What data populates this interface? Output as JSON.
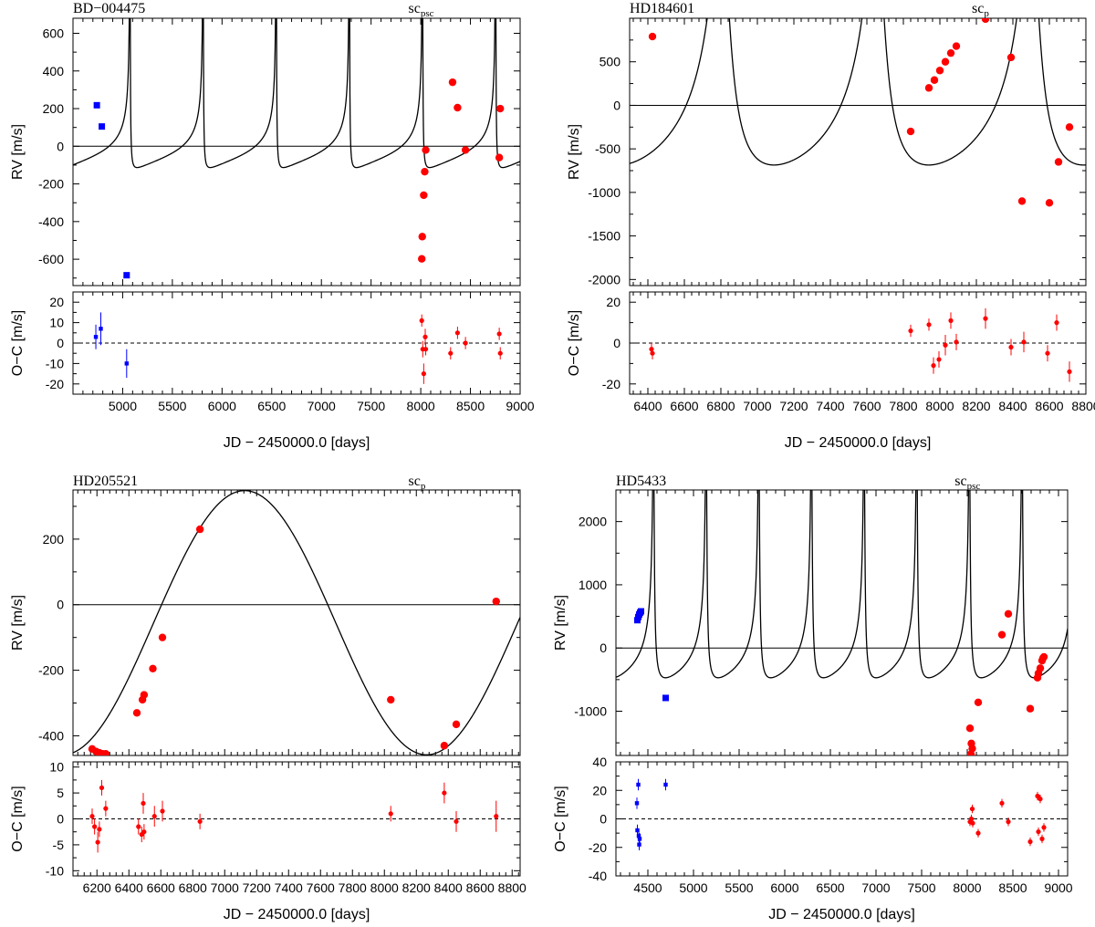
{
  "colors": {
    "set_a": "#0000ff",
    "set_b": "#ff0000",
    "curve": "#000000"
  },
  "chart_data": [
    {
      "type": "scatter",
      "title": "BD−004475",
      "model_label": {
        "base": "sc",
        "sub": "psc"
      },
      "xlabel": "JD − 2450000.0 [days]",
      "ylabel": "RV [m/s]",
      "residual_ylabel": "O−C [m/s]",
      "xlim": [
        4500,
        9000
      ],
      "ylim": [
        -740,
        680
      ],
      "residual_ylim": [
        -25,
        25
      ],
      "xticks": [
        5000,
        5500,
        6000,
        6500,
        7000,
        7500,
        8000,
        8500,
        9000
      ],
      "yticks": [
        600,
        400,
        200,
        0,
        -200,
        -400,
        -600
      ],
      "residual_yticks": [
        20,
        10,
        0,
        -10,
        -20
      ],
      "model": {
        "period": 736,
        "K": 708,
        "e": 0.92,
        "omega_deg": 24,
        "tp": 5810,
        "gamma": 0
      },
      "series": [
        {
          "set": "a",
          "marker": "square",
          "points": [
            [
              4740,
              218
            ],
            [
              4790,
              105
            ],
            [
              5040,
              -685
            ]
          ],
          "residuals": [
            [
              4730,
              3,
              6
            ],
            [
              4780,
              7,
              8
            ],
            [
              5040,
              -10,
              7
            ]
          ]
        },
        {
          "set": "b",
          "marker": "circle",
          "points": [
            [
              8010,
              -598
            ],
            [
              8015,
              -480
            ],
            [
              8030,
              -260
            ],
            [
              8040,
              -135
            ],
            [
              8050,
              -20
            ],
            [
              8320,
              340
            ],
            [
              8370,
              205
            ],
            [
              8450,
              -20
            ],
            [
              8790,
              -60
            ],
            [
              8800,
              200
            ]
          ],
          "residuals": [
            [
              8010,
              11,
              3
            ],
            [
              8020,
              -3,
              4
            ],
            [
              8030,
              -15,
              5
            ],
            [
              8045,
              3,
              4
            ],
            [
              8050,
              -3,
              3
            ],
            [
              8300,
              -5,
              3
            ],
            [
              8370,
              5,
              3
            ],
            [
              8450,
              0,
              3
            ],
            [
              8790,
              4.5,
              3
            ],
            [
              8800,
              -5,
              3
            ]
          ]
        }
      ]
    },
    {
      "type": "scatter",
      "title": "HD184601",
      "model_label": {
        "base": "sc",
        "sub": "p"
      },
      "xlabel": "JD − 2450000.0 [days]",
      "ylabel": "RV [m/s]",
      "residual_ylabel": "O−C [m/s]",
      "xlim": [
        6300,
        8800
      ],
      "ylim": [
        -2070,
        1000
      ],
      "residual_ylim": [
        -25,
        25
      ],
      "xticks": [
        6400,
        6600,
        6800,
        7000,
        7200,
        7400,
        7600,
        7800,
        8000,
        8200,
        8400,
        8600,
        8800
      ],
      "yticks": [
        500,
        0,
        -500,
        -1000,
        -1500,
        -2000
      ],
      "residual_yticks": [
        20,
        0,
        -20
      ],
      "model": {
        "period": 848,
        "K": 1495,
        "e": 0.58,
        "omega_deg": 21,
        "tp": 6810,
        "gamma": 0
      },
      "series": [
        {
          "set": "b",
          "marker": "circle",
          "points": [
            [
              6425,
              790
            ],
            [
              7840,
              -300
            ],
            [
              7940,
              200
            ],
            [
              7970,
              290
            ],
            [
              8000,
              400
            ],
            [
              8030,
              500
            ],
            [
              8060,
              600
            ],
            [
              8090,
              680
            ],
            [
              8250,
              990
            ],
            [
              8390,
              550
            ],
            [
              8450,
              -1100
            ],
            [
              8600,
              -1120
            ],
            [
              8650,
              -650
            ],
            [
              8710,
              -250
            ]
          ],
          "residuals": [
            [
              6420,
              -3,
              3
            ],
            [
              6425,
              -5,
              3
            ],
            [
              7840,
              6,
              3
            ],
            [
              7940,
              9,
              3
            ],
            [
              7965,
              -11,
              4
            ],
            [
              7995,
              -8,
              4
            ],
            [
              8030,
              -1,
              5
            ],
            [
              8060,
              11,
              4
            ],
            [
              8090,
              0.5,
              4
            ],
            [
              8250,
              12,
              5
            ],
            [
              8390,
              -2,
              4
            ],
            [
              8460,
              0.5,
              5
            ],
            [
              8590,
              -5,
              4
            ],
            [
              8640,
              10,
              4
            ],
            [
              8710,
              -14,
              5
            ]
          ]
        }
      ]
    },
    {
      "type": "scatter",
      "title": "HD205521",
      "model_label": {
        "base": "sc",
        "sub": "p"
      },
      "xlabel": "JD − 2450000.0 [days]",
      "ylabel": "RV [m/s]",
      "residual_ylabel": "O−C [m/s]",
      "xlim": [
        6050,
        8850
      ],
      "ylim": [
        -460,
        350
      ],
      "residual_ylim": [
        -11,
        11
      ],
      "xticks": [
        6200,
        6400,
        6600,
        6800,
        7000,
        7200,
        7400,
        7600,
        7800,
        8000,
        8200,
        8400,
        8600,
        8800
      ],
      "yticks": [
        200,
        0,
        -200,
        -400
      ],
      "residual_yticks": [
        10,
        5,
        0,
        -5,
        -10
      ],
      "model": {
        "period": 2280,
        "K": 403,
        "e": 0,
        "omega_deg": 0,
        "tp": 7125,
        "gamma": -55
      },
      "series": [
        {
          "set": "b",
          "marker": "circle",
          "points": [
            [
              6170,
              -440
            ],
            [
              6195,
              -448
            ],
            [
              6215,
              -452
            ],
            [
              6235,
              -455
            ],
            [
              6255,
              -455
            ],
            [
              6450,
              -330
            ],
            [
              6485,
              -290
            ],
            [
              6495,
              -275
            ],
            [
              6550,
              -195
            ],
            [
              6610,
              -100
            ],
            [
              6845,
              230
            ],
            [
              8040,
              -290
            ],
            [
              8375,
              -430
            ],
            [
              8450,
              -365
            ],
            [
              8700,
              10
            ]
          ],
          "residuals": [
            [
              6170,
              0.5,
              1.5
            ],
            [
              6185,
              -1.5,
              1.5
            ],
            [
              6205,
              -4.5,
              2
            ],
            [
              6215,
              -2,
              1.5
            ],
            [
              6230,
              6,
              1.5
            ],
            [
              6255,
              2,
              1.5
            ],
            [
              6460,
              -1.5,
              1.5
            ],
            [
              6480,
              -3,
              1.5
            ],
            [
              6490,
              3,
              2
            ],
            [
              6495,
              -2.5,
              1.5
            ],
            [
              6560,
              0.5,
              2
            ],
            [
              6610,
              1.5,
              2
            ],
            [
              6845,
              -0.5,
              1.5
            ],
            [
              8040,
              1,
              1.5
            ],
            [
              8375,
              5,
              2
            ],
            [
              8450,
              -0.5,
              2
            ],
            [
              8700,
              0.5,
              3
            ]
          ]
        }
      ]
    },
    {
      "type": "scatter",
      "title": "HD5433",
      "model_label": {
        "base": "sc",
        "sub": "psc"
      },
      "xlabel": "JD − 2450000.0 [days]",
      "ylabel": "RV [m/s]",
      "residual_ylabel": "O−C [m/s]",
      "xlim": [
        4150,
        9100
      ],
      "ylim": [
        -1700,
        2500
      ],
      "residual_ylim": [
        -40,
        40
      ],
      "xticks": [
        4500,
        5000,
        5500,
        6000,
        6500,
        7000,
        7500,
        8000,
        8500,
        9000
      ],
      "yticks": [
        2000,
        1000,
        0,
        -1000
      ],
      "residual_yticks": [
        40,
        20,
        0,
        -20,
        -40
      ],
      "model": {
        "period": 577,
        "K": 2050,
        "e": 0.82,
        "omega_deg": 20,
        "tp": 5140,
        "gamma": 0
      },
      "series": [
        {
          "set": "a",
          "marker": "square",
          "points": [
            [
              4385,
              440
            ],
            [
              4395,
              490
            ],
            [
              4405,
              530
            ],
            [
              4415,
              560
            ],
            [
              4425,
              580
            ],
            [
              4695,
              -790
            ]
          ],
          "residuals": [
            [
              4380,
              11,
              4
            ],
            [
              4385,
              -8,
              4
            ],
            [
              4395,
              24,
              4
            ],
            [
              4400,
              -12,
              4
            ],
            [
              4405,
              -18,
              4
            ],
            [
              4410,
              -14,
              4
            ],
            [
              4695,
              24,
              4
            ]
          ]
        },
        {
          "set": "b",
          "marker": "circle",
          "points": [
            [
              8030,
              -1270
            ],
            [
              8045,
              -1510
            ],
            [
              8055,
              -1590
            ],
            [
              8040,
              -1680
            ],
            [
              8120,
              -860
            ],
            [
              8380,
              210
            ],
            [
              8450,
              540
            ],
            [
              8690,
              -960
            ],
            [
              8770,
              -470
            ],
            [
              8780,
              -400
            ],
            [
              8800,
              -320
            ],
            [
              8820,
              -200
            ],
            [
              8840,
              -140
            ],
            [
              8830,
              -160
            ]
          ],
          "residuals": [
            [
              8030,
              -2,
              3
            ],
            [
              8045,
              0,
              3
            ],
            [
              8055,
              7,
              3
            ],
            [
              8060,
              -3,
              3
            ],
            [
              8120,
              -10,
              3
            ],
            [
              8380,
              11,
              3
            ],
            [
              8450,
              -2,
              3
            ],
            [
              8690,
              -16,
              3
            ],
            [
              8770,
              16,
              3
            ],
            [
              8780,
              -9,
              3
            ],
            [
              8800,
              14,
              3
            ],
            [
              8820,
              -14,
              3
            ],
            [
              8840,
              -6,
              3
            ]
          ]
        }
      ]
    }
  ]
}
